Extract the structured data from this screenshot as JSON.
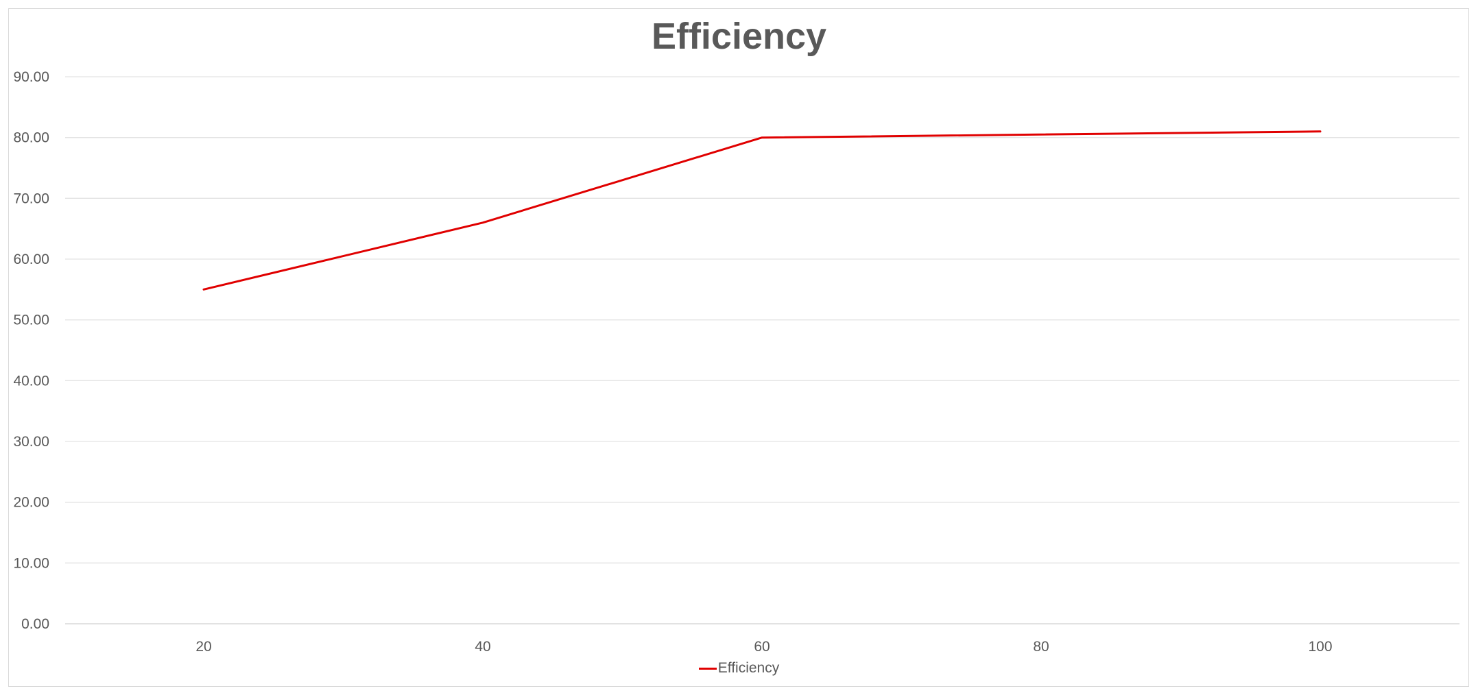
{
  "chart_data": {
    "type": "line",
    "title": "Efficiency",
    "xlabel": "",
    "ylabel": "",
    "x": [
      20,
      40,
      60,
      80,
      100
    ],
    "x_tick_labels": [
      "20",
      "40",
      "60",
      "80",
      "100"
    ],
    "y_tick_labels": [
      "0.00",
      "10.00",
      "20.00",
      "30.00",
      "40.00",
      "50.00",
      "60.00",
      "70.00",
      "80.00",
      "90.00"
    ],
    "ylim": [
      0,
      90
    ],
    "grid": true,
    "legend_position": "bottom",
    "series": [
      {
        "name": "Efficiency",
        "color": "#e00000",
        "points": [
          {
            "x": 20,
            "y": 55.0
          },
          {
            "x": 40,
            "y": 66.0
          },
          {
            "x": 60,
            "y": 80.0
          },
          {
            "x": 100,
            "y": 81.0
          }
        ]
      }
    ]
  }
}
